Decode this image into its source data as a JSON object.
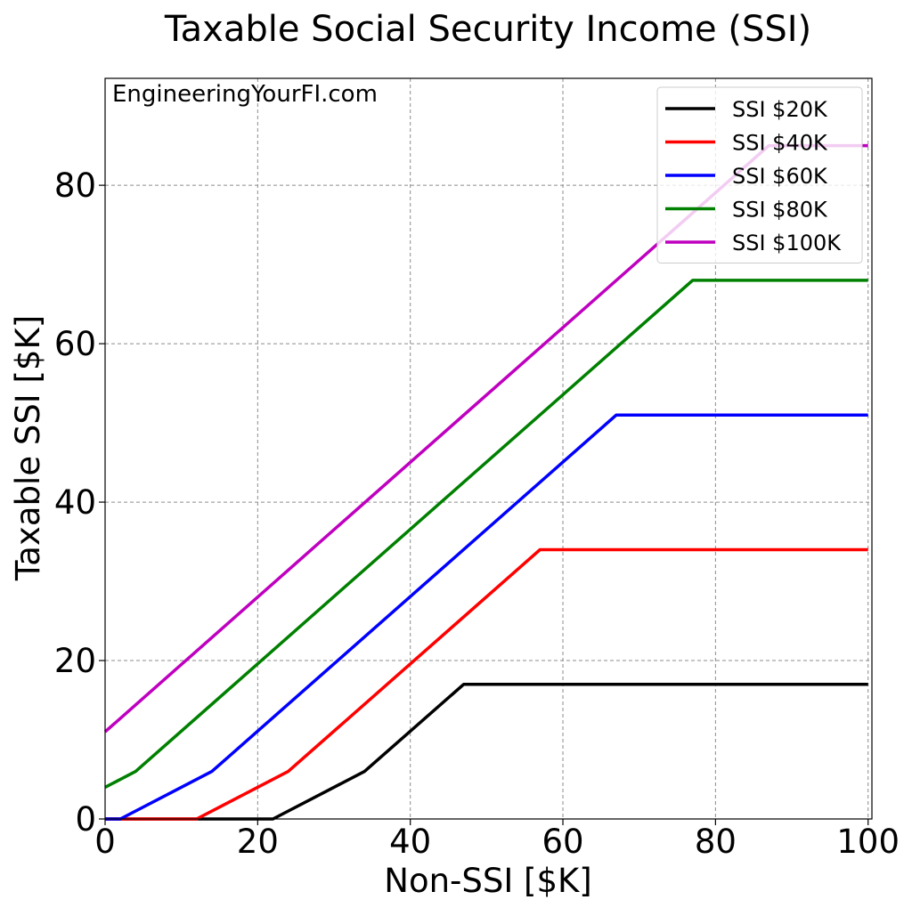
{
  "chart_data": {
    "type": "line",
    "title": "Taxable Social Security Income (SSI)",
    "xlabel": "Non-SSI [$K]",
    "ylabel": "Taxable SSI [$K]",
    "xlim": [
      0,
      100.5
    ],
    "ylim": [
      0,
      93.5
    ],
    "xticks": [
      0,
      20,
      40,
      60,
      80,
      100
    ],
    "yticks": [
      0,
      20,
      40,
      60,
      80
    ],
    "grid": true,
    "legend_position": "top-right",
    "annotation": "EngineeringYourFI.com",
    "series": [
      {
        "name": "SSI $20K",
        "color": "#000000",
        "points": [
          [
            0,
            0
          ],
          [
            22,
            0
          ],
          [
            34,
            6
          ],
          [
            47,
            17
          ],
          [
            100,
            17
          ]
        ]
      },
      {
        "name": "SSI $40K",
        "color": "#ff0000",
        "points": [
          [
            0,
            0
          ],
          [
            12,
            0
          ],
          [
            24,
            6
          ],
          [
            57,
            34
          ],
          [
            100,
            34
          ]
        ]
      },
      {
        "name": "SSI $60K",
        "color": "#0000ff",
        "points": [
          [
            0,
            0
          ],
          [
            2,
            0
          ],
          [
            14,
            6
          ],
          [
            67,
            51
          ],
          [
            100,
            51
          ]
        ]
      },
      {
        "name": "SSI $80K",
        "color": "#008000",
        "points": [
          [
            0,
            4
          ],
          [
            4,
            6
          ],
          [
            77,
            68
          ],
          [
            100,
            68
          ]
        ]
      },
      {
        "name": "SSI $100K",
        "color": "#bf00bf",
        "points": [
          [
            0,
            11
          ],
          [
            87,
            85
          ],
          [
            100,
            85
          ]
        ]
      }
    ]
  }
}
